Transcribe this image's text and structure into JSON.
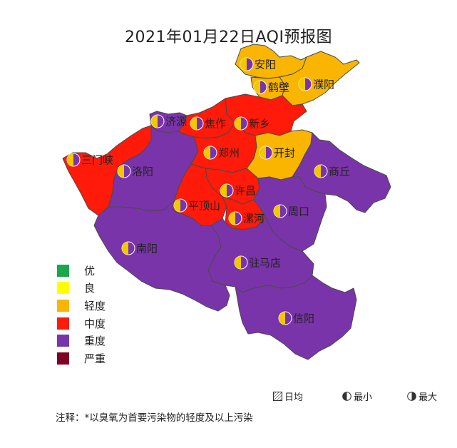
{
  "title": "2021年01月22日AQI预报图",
  "colors": {
    "excellent": "#1aa64a",
    "good": "#ffff00",
    "light": "#f9b500",
    "moderate": "#ff1a0a",
    "heavy": "#7a34a9",
    "severe": "#7e0023"
  },
  "legend": {
    "items": [
      {
        "label": "优",
        "color": "#1aa64a"
      },
      {
        "label": "良",
        "color": "#ffff00"
      },
      {
        "label": "轻度",
        "color": "#f9b500"
      },
      {
        "label": "中度",
        "color": "#ff1a0a"
      },
      {
        "label": "重度",
        "color": "#7a34a9"
      },
      {
        "label": "严重",
        "color": "#7e0023"
      }
    ]
  },
  "symbol_legend": {
    "daily": "日均",
    "min": "最小",
    "max": "最大"
  },
  "note": "注释：*以臭氧为首要污染物的轻度及以上污染",
  "cities": [
    {
      "name": "安阳",
      "level": "light"
    },
    {
      "name": "鹤壁",
      "level": "light"
    },
    {
      "name": "濮阳",
      "level": "light"
    },
    {
      "name": "济源",
      "level": "heavy"
    },
    {
      "name": "焦作",
      "level": "moderate"
    },
    {
      "name": "新乡",
      "level": "moderate"
    },
    {
      "name": "三门峡",
      "level": "moderate"
    },
    {
      "name": "郑州",
      "level": "moderate"
    },
    {
      "name": "开封",
      "level": "light"
    },
    {
      "name": "洛阳",
      "level": "heavy"
    },
    {
      "name": "商丘",
      "level": "heavy"
    },
    {
      "name": "许昌",
      "level": "moderate"
    },
    {
      "name": "平顶山",
      "level": "moderate"
    },
    {
      "name": "漯河",
      "level": "moderate"
    },
    {
      "name": "周口",
      "level": "heavy"
    },
    {
      "name": "南阳",
      "level": "heavy"
    },
    {
      "name": "驻马店",
      "level": "heavy"
    },
    {
      "name": "信阳",
      "level": "heavy"
    }
  ]
}
